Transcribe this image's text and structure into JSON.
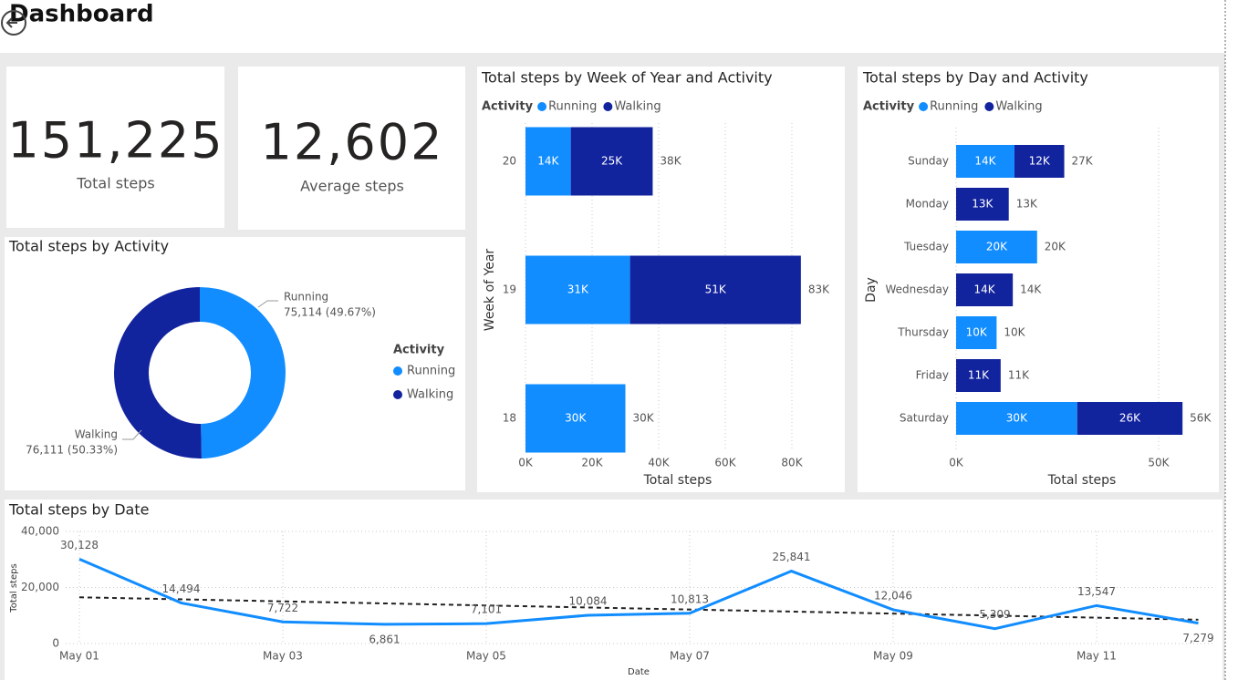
{
  "header": {
    "title": "Dashboard"
  },
  "cards": [
    {
      "value": "151,225",
      "label": "Total steps"
    },
    {
      "value": "12,602",
      "label": "Average steps"
    }
  ],
  "chart_data": [
    {
      "type": "pie",
      "donut": true,
      "title": "Total steps by Activity",
      "legend_title": "Activity",
      "categories": [
        "Running",
        "Walking"
      ],
      "values": [
        75114,
        76111
      ],
      "value_labels": [
        "75,114 (49.67%)",
        "76,111 (50.33%)"
      ],
      "colors": [
        "#118DFF",
        "#12239E"
      ]
    },
    {
      "type": "bar",
      "orientation": "horizontal",
      "stacked": true,
      "title": "Total steps by Week of Year and Activity",
      "legend_title": "Activity",
      "x_label": "Total steps",
      "y_label": "Week of Year",
      "categories": [
        "20",
        "19",
        "18"
      ],
      "series": [
        {
          "name": "Running",
          "color": "#118DFF",
          "values": [
            13600,
            31400,
            30000
          ],
          "value_labels": [
            "14K",
            "31K",
            "30K"
          ]
        },
        {
          "name": "Walking",
          "color": "#12239E",
          "values": [
            24600,
            51300,
            null
          ],
          "value_labels": [
            "25K",
            "51K",
            null
          ]
        }
      ],
      "totals": [
        38200,
        82700,
        30000
      ],
      "total_labels": [
        "38K",
        "83K",
        "30K"
      ],
      "xlim": [
        0,
        90000
      ],
      "xticks": [
        {
          "value": 0,
          "label": "0K"
        },
        {
          "value": 20000,
          "label": "20K"
        },
        {
          "value": 40000,
          "label": "40K"
        },
        {
          "value": 60000,
          "label": "60K"
        },
        {
          "value": 80000,
          "label": "80K"
        }
      ],
      "grid": true
    },
    {
      "type": "bar",
      "orientation": "horizontal",
      "stacked": true,
      "title": "Total steps by Day and Activity",
      "legend_title": "Activity",
      "x_label": "Total steps",
      "y_label": "Day",
      "categories": [
        "Sunday",
        "Monday",
        "Tuesday",
        "Wednesday",
        "Thursday",
        "Friday",
        "Saturday"
      ],
      "series": [
        {
          "name": "Running",
          "color": "#118DFF",
          "values": [
            14400,
            null,
            20000,
            null,
            10000,
            null,
            29900
          ],
          "value_labels": [
            "14K",
            null,
            "20K",
            null,
            "10K",
            null,
            "30K"
          ]
        },
        {
          "name": "Walking",
          "color": "#12239E",
          "values": [
            12300,
            13000,
            null,
            14000,
            null,
            11000,
            26000
          ],
          "value_labels": [
            "12K",
            "13K",
            null,
            "14K",
            null,
            "11K",
            "26K"
          ]
        }
      ],
      "totals": [
        26700,
        13000,
        20000,
        14000,
        10000,
        11000,
        55900
      ],
      "total_labels": [
        "27K",
        "13K",
        "20K",
        "14K",
        "10K",
        "11K",
        "56K"
      ],
      "xlim": [
        0,
        63000
      ],
      "xticks": [
        {
          "value": 0,
          "label": "0K"
        },
        {
          "value": 50000,
          "label": "50K"
        }
      ],
      "grid": true
    },
    {
      "type": "line",
      "title": "Total steps by Date",
      "x_label": "Date",
      "y_label": "Total steps",
      "categories": [
        "May 01",
        null,
        "May 03",
        null,
        "May 05",
        null,
        "May 07",
        null,
        "May 09",
        null,
        "May 11",
        null
      ],
      "values": [
        30128,
        14494,
        7722,
        6861,
        7101,
        10084,
        10813,
        25841,
        12046,
        5309,
        13547,
        7279
      ],
      "value_labels": [
        "30,128",
        "14,494",
        "7,722",
        "6,861",
        "7,101",
        "10,084",
        "10,813",
        "25,841",
        "12,046",
        "5,309",
        "13,547",
        "7,279"
      ],
      "color": "#118DFF",
      "trend": [
        16500,
        8500
      ],
      "trend_color": "#222222",
      "ylim": [
        0,
        40000
      ],
      "yticks": [
        0,
        {
          "value": 20000,
          "label": "20,000"
        },
        {
          "value": 40000,
          "label": "40,000"
        }
      ],
      "grid": true
    }
  ]
}
